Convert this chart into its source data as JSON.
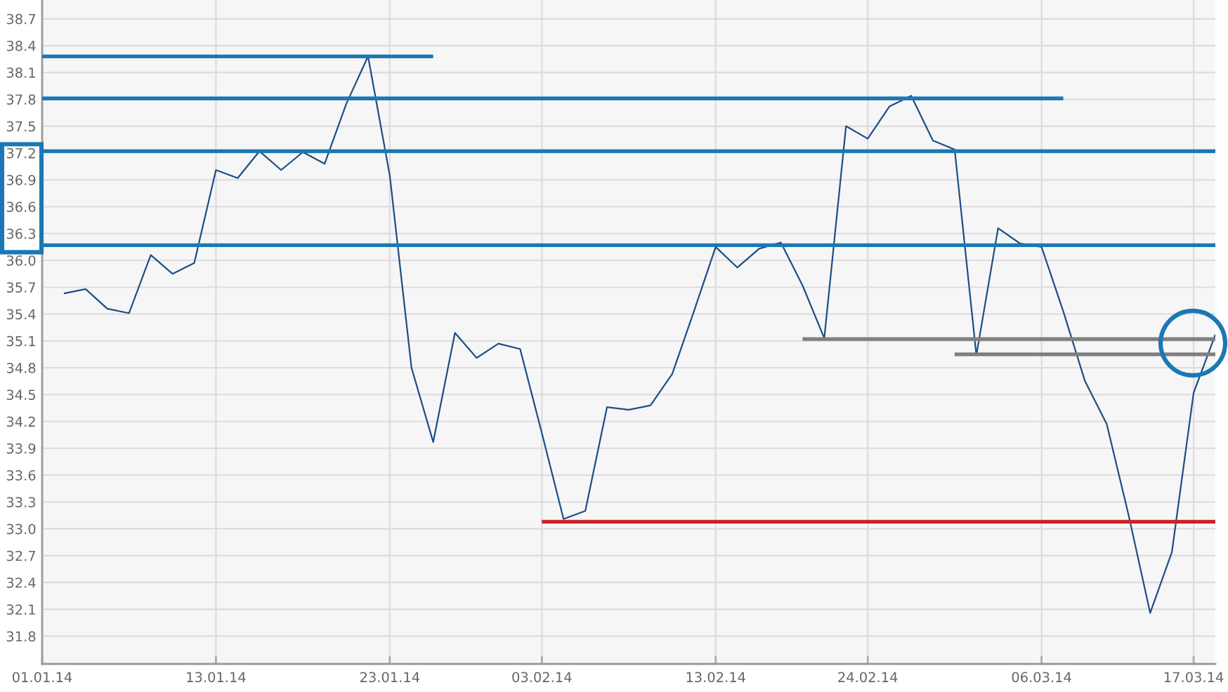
{
  "chart_data": {
    "type": "line",
    "categories": [
      "01.01.14",
      null,
      null,
      null,
      null,
      null,
      null,
      null,
      "13.01.14",
      null,
      null,
      null,
      null,
      null,
      null,
      null,
      "23.01.14",
      null,
      null,
      null,
      null,
      null,
      null,
      "03.02.14",
      null,
      null,
      null,
      null,
      null,
      null,
      null,
      "13.02.14",
      null,
      null,
      null,
      null,
      null,
      null,
      "24.02.14",
      null,
      null,
      null,
      null,
      null,
      null,
      null,
      "06.03.14",
      null,
      null,
      null,
      null,
      null,
      null,
      "17.03.14",
      null
    ],
    "series": [
      {
        "color": "#1d4f86",
        "values": [
          null,
          35.63,
          35.68,
          35.46,
          35.41,
          36.06,
          35.85,
          35.97,
          37.01,
          36.92,
          37.22,
          37.01,
          37.21,
          37.08,
          37.75,
          38.28,
          36.95,
          34.8,
          33.97,
          35.19,
          34.91,
          35.07,
          35.01,
          34.07,
          33.11,
          33.2,
          34.36,
          34.33,
          34.38,
          34.73,
          35.43,
          36.15,
          35.92,
          36.13,
          36.2,
          35.72,
          35.13,
          37.5,
          37.36,
          37.72,
          37.84,
          37.34,
          37.24,
          34.94,
          36.36,
          36.19,
          36.15,
          35.43,
          34.65,
          34.17,
          33.16,
          32.06,
          32.74,
          34.52,
          35.17
        ]
      },
      {
        "color": "#1b78b4",
        "values": [
          38.28,
          38.28,
          38.28,
          38.28,
          38.28,
          38.28,
          38.28,
          38.28,
          38.28,
          38.28,
          38.28,
          38.28,
          38.28,
          38.28,
          38.28,
          38.28,
          38.28,
          38.28,
          38.28,
          null,
          null,
          null,
          null,
          null,
          null,
          null,
          null,
          null,
          null,
          null,
          null,
          null,
          null,
          null,
          null,
          null,
          null,
          null,
          null,
          null,
          null,
          null,
          null,
          null,
          null,
          null,
          null,
          null,
          null,
          null,
          null,
          null,
          null,
          null,
          null
        ]
      },
      {
        "color": "#1b78b4",
        "values": [
          37.81,
          37.81,
          37.81,
          37.81,
          37.81,
          37.81,
          37.81,
          37.81,
          37.81,
          37.81,
          37.81,
          37.81,
          37.81,
          37.81,
          37.81,
          37.81,
          37.81,
          37.81,
          37.81,
          37.81,
          37.81,
          37.81,
          37.81,
          37.81,
          37.81,
          37.81,
          37.81,
          37.81,
          37.81,
          37.81,
          37.81,
          37.81,
          37.81,
          37.81,
          37.81,
          37.81,
          37.81,
          37.81,
          37.81,
          37.81,
          37.81,
          37.81,
          37.81,
          37.81,
          37.81,
          37.81,
          37.81,
          37.81,
          null,
          null,
          null,
          null,
          null,
          null,
          null
        ]
      },
      {
        "color": "#7f7f7f",
        "values": [
          null,
          null,
          null,
          null,
          null,
          null,
          null,
          null,
          null,
          null,
          null,
          null,
          null,
          null,
          null,
          null,
          null,
          null,
          null,
          null,
          null,
          null,
          null,
          null,
          null,
          null,
          null,
          null,
          null,
          null,
          null,
          null,
          null,
          null,
          null,
          35.12,
          35.12,
          35.12,
          35.12,
          35.12,
          35.12,
          35.12,
          35.12,
          35.12,
          35.12,
          35.12,
          35.12,
          35.12,
          35.12,
          35.12,
          35.12,
          35.12,
          35.12,
          35.12,
          35.12
        ]
      },
      {
        "color": "#7f7f7f",
        "values": [
          null,
          null,
          null,
          null,
          null,
          null,
          null,
          null,
          null,
          null,
          null,
          null,
          null,
          null,
          null,
          null,
          null,
          null,
          null,
          null,
          null,
          null,
          null,
          null,
          null,
          null,
          null,
          null,
          null,
          null,
          null,
          null,
          null,
          null,
          null,
          null,
          null,
          null,
          null,
          null,
          null,
          null,
          34.95,
          34.95,
          34.95,
          34.95,
          34.95,
          34.95,
          34.95,
          34.95,
          34.95,
          34.95,
          34.95,
          34.95,
          34.95
        ]
      },
      {
        "color": "#cc2229",
        "values": [
          null,
          null,
          null,
          null,
          null,
          null,
          null,
          null,
          null,
          null,
          null,
          null,
          null,
          null,
          null,
          null,
          null,
          null,
          null,
          null,
          null,
          null,
          null,
          33.08,
          33.08,
          33.08,
          33.08,
          33.08,
          33.08,
          33.08,
          33.08,
          33.08,
          33.08,
          33.08,
          33.08,
          33.08,
          33.08,
          33.08,
          33.08,
          33.08,
          33.08,
          33.08,
          33.08,
          33.08,
          33.08,
          33.08,
          33.08,
          33.08,
          33.08,
          33.08,
          33.08,
          33.08,
          33.08,
          33.08,
          33.08
        ]
      }
    ],
    "ref_lines": [
      {
        "axis": "y",
        "value": 37.22,
        "color": "#1b78b4"
      },
      {
        "axis": "y",
        "value": 36.17,
        "color": "#1b78b4"
      }
    ],
    "ylim": [
      31.49,
      38.91
    ],
    "yticks": [
      31.8,
      32.1,
      32.4,
      32.7,
      {
        "value": 33,
        "label": "33.0"
      },
      33.3,
      33.6,
      33.9,
      34.2,
      34.5,
      34.8,
      35.1,
      35.4,
      35.7,
      {
        "value": 36,
        "label": "36.0"
      },
      36.3,
      36.6,
      36.9,
      37.2,
      37.5,
      37.8,
      38.1,
      38.4,
      38.7
    ],
    "grid": true
  }
}
